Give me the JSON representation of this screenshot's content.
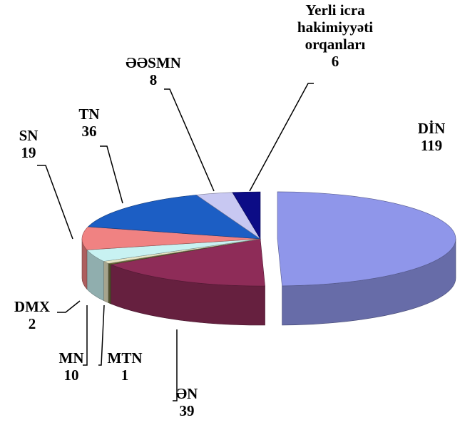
{
  "chart_data": {
    "type": "pie",
    "categories": [
      "DİN",
      "ƏN",
      "MTN",
      "DMX",
      "MN",
      "SN",
      "TN",
      "ƏƏSMN",
      "Yerli icra hakimiyyəti orqanları"
    ],
    "values": [
      119,
      39,
      1,
      2,
      10,
      19,
      36,
      8,
      6
    ],
    "colors": [
      "#8f96ea",
      "#8e2c58",
      "#6e6c3c",
      "#e6e4c4",
      "#c8f2f2",
      "#f08282",
      "#1c5ec4",
      "#c8c8f2",
      "#0c0c86"
    ],
    "exploded": [
      0
    ]
  }
}
